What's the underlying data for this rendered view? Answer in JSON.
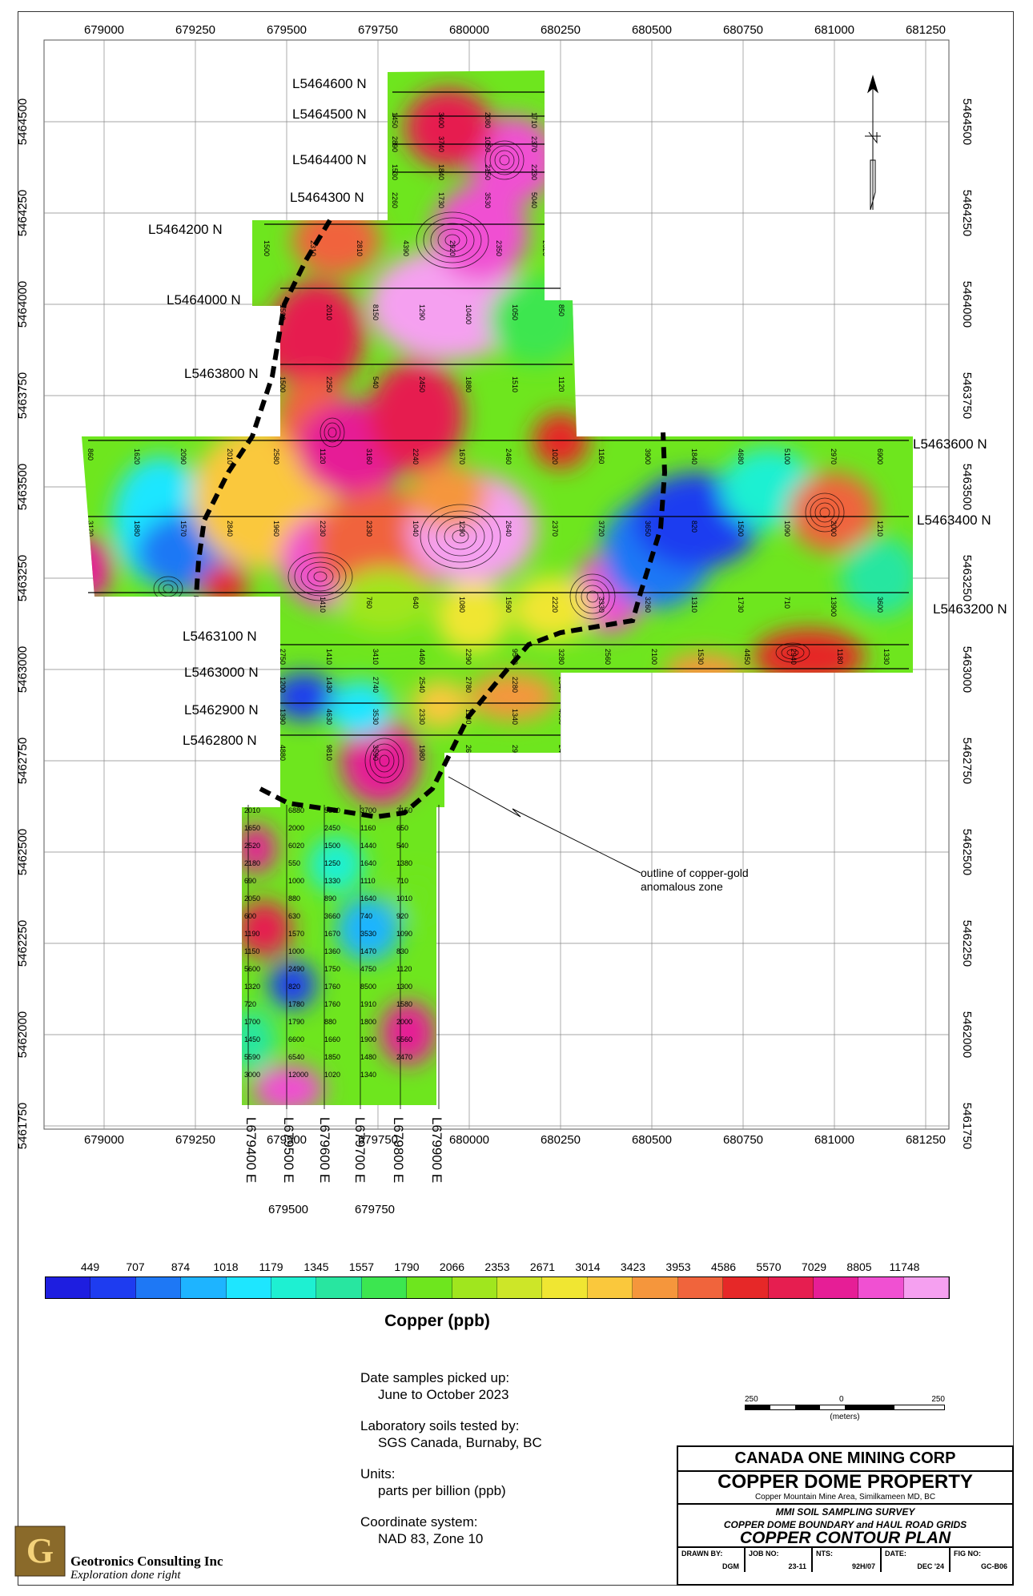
{
  "map": {
    "easting_ticks": [
      "679000",
      "679250",
      "679500",
      "679750",
      "680000",
      "680250",
      "680500",
      "680750",
      "681000",
      "681250"
    ],
    "northing_ticks": [
      "5464500",
      "5464250",
      "5464000",
      "5463750",
      "5463500",
      "5463250",
      "5463000",
      "5462750",
      "5462500",
      "5462250",
      "5462000",
      "5461750"
    ],
    "line_labels": [
      "L5464600 N",
      "L5464500 N",
      "L5464400 N",
      "L5464300 N",
      "L5464200 N",
      "L5464000 N",
      "L5463800 N",
      "L5463600 N",
      "L5463400 N",
      "L5463200 N",
      "L5463100 N",
      "L5463000 N",
      "L5462900 N",
      "L5462800 N"
    ],
    "vertical_line_labels": [
      "L679400 E",
      "L679500 E",
      "L679600 E",
      "L679700 E",
      "L679800 E",
      "L679900 E"
    ],
    "bottom_extra_labels": [
      "679500",
      "679750"
    ],
    "annotation": [
      "outline of copper-gold",
      "anomalous zone"
    ],
    "sample_values": [
      "1450",
      "3400",
      "2080",
      "1710",
      "2890",
      "3740",
      "1050",
      "2370",
      "1530",
      "1840",
      "2150",
      "2230",
      "2260",
      "1730",
      "3530",
      "5040",
      "1500",
      "2310",
      "2810",
      "4390",
      "2920",
      "2350",
      "2320",
      "1590",
      "2010",
      "8150",
      "1290",
      "10400",
      "1050",
      "850",
      "1500",
      "2250",
      "540",
      "2450",
      "1880",
      "1510",
      "1120",
      "860",
      "1620",
      "2090",
      "2010",
      "2580",
      "1120",
      "3160",
      "2240",
      "1670",
      "2460",
      "1020",
      "1160",
      "3900",
      "1840",
      "4680",
      "5100",
      "2970",
      "6900",
      "3120",
      "1880",
      "1570",
      "2840",
      "1960",
      "2230",
      "2330",
      "1040",
      "1290",
      "2640",
      "2370",
      "3720",
      "3650",
      "820",
      "1500",
      "1090",
      "2000",
      "1210",
      "550",
      "930",
      "1630",
      "1640",
      "1070",
      "1410",
      "760",
      "640",
      "1080",
      "1590",
      "2220",
      "3330",
      "3260",
      "1310",
      "1730",
      "710",
      "13900",
      "3600",
      "2750",
      "1410",
      "3410",
      "4460",
      "2290",
      "9540",
      "3280",
      "2560",
      "2100",
      "1530",
      "4450",
      "2940",
      "1180",
      "1330",
      "1200",
      "1430",
      "2740",
      "2540",
      "2780",
      "2280",
      "2340",
      "4050",
      "11400",
      "3160",
      "1660",
      "2060",
      "1090",
      "1190",
      "1390",
      "4630",
      "3530",
      "2330",
      "1140",
      "1340",
      "4650",
      "4880",
      "9810",
      "3590",
      "1980",
      "2670",
      "2920",
      "2400",
      "2010",
      "6880",
      "5590",
      "3700",
      "3150",
      "1330",
      "1650",
      "2000",
      "2450",
      "1160",
      "650",
      "3130",
      "2520",
      "6020",
      "1500",
      "1440",
      "540",
      "1720",
      "2180",
      "550",
      "1250",
      "1640",
      "1380",
      "1690",
      "690",
      "1000",
      "1330",
      "1110",
      "710",
      "1150",
      "2050",
      "880",
      "890",
      "1640",
      "1010",
      "2400",
      "600",
      "630",
      "3660",
      "740",
      "920",
      "1070",
      "1190",
      "1570",
      "1670",
      "3530",
      "1090",
      "920",
      "1150",
      "1000",
      "1360",
      "1470",
      "830",
      "900",
      "5600",
      "2490",
      "1750",
      "4750",
      "1120",
      "1120",
      "1320",
      "820",
      "1760",
      "8500",
      "1300",
      "1190",
      "720",
      "1780",
      "1760",
      "1910",
      "1580",
      "2900",
      "1700",
      "1790",
      "880",
      "1800",
      "2000",
      "5730",
      "1450",
      "6600",
      "1660",
      "1900",
      "5560",
      "2430",
      "5590",
      "6540",
      "1850",
      "1480",
      "2470",
      "1740",
      "3000",
      "12000",
      "1020",
      "1340"
    ]
  },
  "legend": {
    "values": [
      "449",
      "707",
      "874",
      "1018",
      "1179",
      "1345",
      "1557",
      "1790",
      "2066",
      "2353",
      "2671",
      "3014",
      "3423",
      "3953",
      "4586",
      "5570",
      "7029",
      "8805",
      "11748"
    ],
    "colors": [
      "#1e1ee0",
      "#1e3cf0",
      "#1e78f5",
      "#1eb4ff",
      "#1ee6ff",
      "#1ef0d2",
      "#28e6a0",
      "#3ce650",
      "#6ee61e",
      "#a0e61e",
      "#cde628",
      "#f0e632",
      "#fac83c",
      "#f5963c",
      "#f0643c",
      "#e62828",
      "#e61e50",
      "#e61e96",
      "#f050d2",
      "#f5a0f0"
    ],
    "title": "Copper (ppb)"
  },
  "notes": [
    {
      "label": "Date samples picked up:",
      "value": "June to October 2023"
    },
    {
      "label": "Laboratory soils tested by:",
      "value": "SGS Canada, Burnaby, BC"
    },
    {
      "label": "Units:",
      "value": "parts per billion (ppb)"
    },
    {
      "label": "Coordinate system:",
      "value": "NAD 83, Zone 10"
    }
  ],
  "scale": {
    "left": "250",
    "mid": "0",
    "right": "250",
    "unit": "(meters)"
  },
  "title_block": {
    "company": "CANADA ONE MINING CORP",
    "property": "COPPER DOME PROPERTY",
    "location": "Copper Mountain Mine Area, Similkameen MD, BC",
    "survey_line1": "MMI SOIL SAMPLING SURVEY",
    "survey_line2": "COPPER DOME BOUNDARY and HAUL ROAD GRIDS",
    "plan": "COPPER CONTOUR PLAN",
    "drawn_by_label": "DRAWN BY:",
    "drawn_by": "DGM",
    "job_no_label": "JOB NO:",
    "job_no": "23-11",
    "nts_label": "NTS:",
    "nts": "92H/07",
    "date_label": "DATE:",
    "date": "DEC '24",
    "fig_no_label": "FIG NO:",
    "fig_no": "GC-B06"
  },
  "logo": {
    "name": "Geotronics Consulting Inc",
    "tagline": "Exploration done right"
  }
}
